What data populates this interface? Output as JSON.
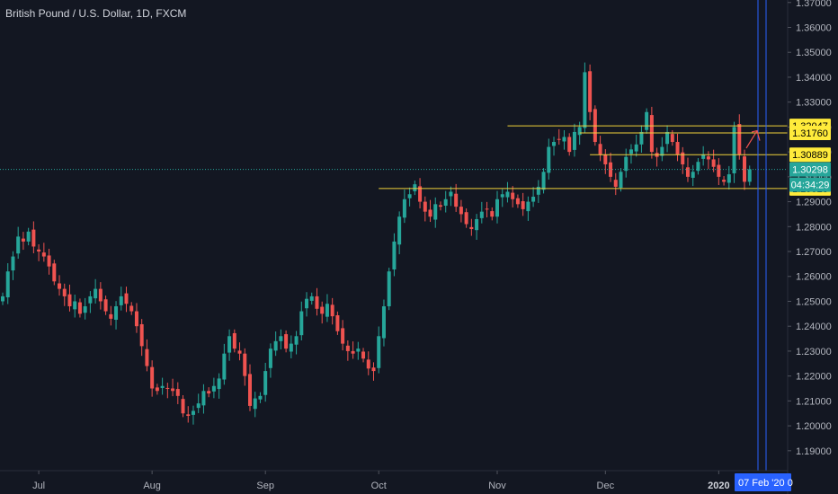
{
  "header": {
    "title": "British Pound / U.S. Dollar, 1D, FXCM"
  },
  "colors": {
    "background": "#131722",
    "up": "#26a69a",
    "down": "#ef5350",
    "level_line": "#f0d23a",
    "level_tag_bg": "#ffeb3b",
    "level_tag_text": "#000000",
    "current_tag_bg": "#26a69a",
    "marker_line": "#2962ff",
    "arrow": "#ef5350",
    "axis_text": "#b2b5be"
  },
  "chart_data": {
    "type": "candlestick",
    "title": "British Pound / U.S. Dollar, 1D, FXCM",
    "ylim": [
      1.182,
      1.371
    ],
    "y_ticks": [
      "1.19000",
      "1.20000",
      "1.21000",
      "1.22000",
      "1.23000",
      "1.24000",
      "1.25000",
      "1.26000",
      "1.27000",
      "1.28000",
      "1.29000",
      "1.30000",
      "1.31000",
      "1.32000",
      "1.33000",
      "1.34000",
      "1.35000",
      "1.36000",
      "1.37000"
    ],
    "x_ticks": [
      {
        "label": "Jul",
        "index": 7,
        "year": false
      },
      {
        "label": "Aug",
        "index": 29,
        "year": false
      },
      {
        "label": "Sep",
        "index": 51,
        "year": false
      },
      {
        "label": "Oct",
        "index": 73,
        "year": false
      },
      {
        "label": "Nov",
        "index": 96,
        "year": false
      },
      {
        "label": "Dec",
        "index": 117,
        "year": false
      },
      {
        "label": "2020",
        "index": 139,
        "year": true
      }
    ],
    "horizontal_levels": [
      {
        "value": 1.32047,
        "label": "1.32047",
        "from_index": 98
      },
      {
        "value": 1.3176,
        "label": "1.31760",
        "from_index": 112
      },
      {
        "value": 1.30889,
        "label": "1.30889",
        "from_index": 114
      },
      {
        "value": 1.29528,
        "label": "1.29528",
        "from_index": 73
      }
    ],
    "current_price": {
      "value": 1.30298,
      "label": "1.30298",
      "countdown": "04:34:29"
    },
    "marker_date_label": "07 Feb '20",
    "marker_date_suffix": "0",
    "close_series": [
      1.252,
      1.262,
      1.268,
      1.276,
      1.274,
      1.278,
      1.272,
      1.27,
      1.268,
      1.264,
      1.258,
      1.255,
      1.252,
      1.248,
      1.25,
      1.245,
      1.248,
      1.252,
      1.255,
      1.25,
      1.246,
      1.243,
      1.248,
      1.252,
      1.249,
      1.246,
      1.24,
      1.232,
      1.224,
      1.215,
      1.214,
      1.216,
      1.215,
      1.214,
      1.212,
      1.205,
      1.204,
      1.206,
      1.209,
      1.214,
      1.213,
      1.216,
      1.219,
      1.229,
      1.236,
      1.231,
      1.229,
      1.22,
      1.208,
      1.211,
      1.212,
      1.222,
      1.231,
      1.234,
      1.236,
      1.231,
      1.233,
      1.236,
      1.246,
      1.251,
      1.252,
      1.247,
      1.245,
      1.249,
      1.244,
      1.238,
      1.233,
      1.23,
      1.229,
      1.231,
      1.227,
      1.223,
      1.222,
      1.236,
      1.248,
      1.262,
      1.274,
      1.284,
      1.291,
      1.293,
      1.297,
      1.29,
      1.286,
      1.284,
      1.289,
      1.288,
      1.291,
      1.294,
      1.288,
      1.285,
      1.281,
      1.279,
      1.283,
      1.286,
      1.287,
      1.284,
      1.291,
      1.293,
      1.294,
      1.291,
      1.289,
      1.287,
      1.29,
      1.292,
      1.296,
      1.302,
      1.312,
      1.314,
      1.315,
      1.316,
      1.31,
      1.318,
      1.32,
      1.342,
      1.326,
      1.314,
      1.309,
      1.305,
      1.3,
      1.296,
      1.302,
      1.308,
      1.311,
      1.313,
      1.318,
      1.326,
      1.31,
      1.308,
      1.312,
      1.318,
      1.314,
      1.309,
      1.305,
      1.3,
      1.302,
      1.306,
      1.309,
      1.307,
      1.304,
      1.3,
      1.298,
      1.301,
      1.32,
      1.309,
      1.298,
      1.303
    ],
    "x_index_max": 144
  }
}
